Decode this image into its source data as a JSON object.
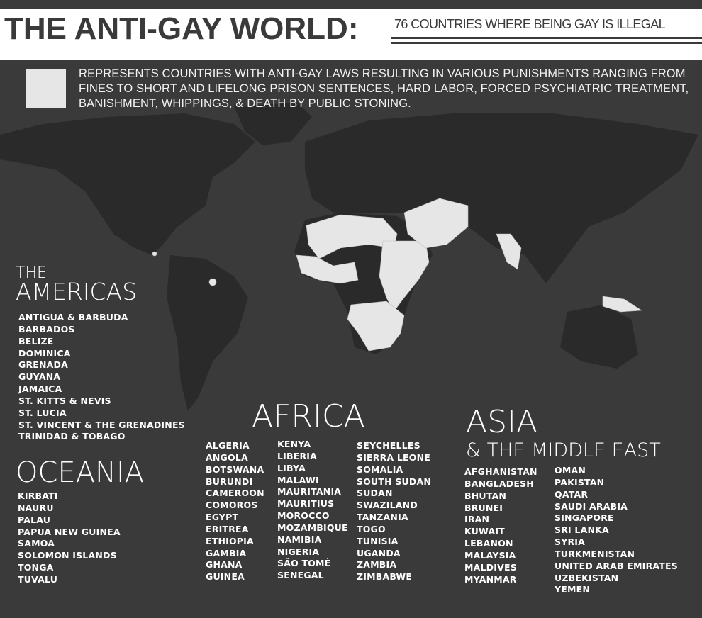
{
  "header": {
    "title": "THE ANTI-GAY WORLD:",
    "subtitle": "76 COUNTRIES WHERE BEING GAY IS ILLEGAL"
  },
  "legend": {
    "swatch_color": "#e6e6e6",
    "text": "REPRESENTS COUNTRIES WITH ANTI-GAY LAWS RESULTING IN VARIOUS PUNISHMENTS RANGING FROM FINES TO SHORT AND LIFELONG PRISON SENTENCES, HARD LABOR, FORCED PSYCHIATRIC TREATMENT, BANISHMENT, WHIPPINGS, & DEATH BY PUBLIC STONING."
  },
  "colors": {
    "background": "#3a3a3a",
    "land": "#2a2a2a",
    "highlighted": "#e6e6e6"
  },
  "regions": {
    "americas": {
      "heading_small": "THE",
      "heading": "AMERICAS",
      "countries": [
        "ANTIGUA & BARBUDA",
        "BARBADOS",
        "BELIZE",
        "DOMINICA",
        "GRENADA",
        "GUYANA",
        "JAMAICA",
        "ST. KITTS & NEVIS",
        "ST. LUCIA",
        "ST. VINCENT & THE GRENADINES",
        "TRINIDAD & TOBAGO"
      ]
    },
    "oceania": {
      "heading": "OCEANIA",
      "countries": [
        "KIRBATI",
        "NAURU",
        "PALAU",
        "PAPUA NEW GUINEA",
        "SAMOA",
        "SOLOMON ISLANDS",
        "TONGA",
        "TUVALU"
      ]
    },
    "africa": {
      "heading": "AFRICA",
      "columns": [
        [
          "ALGERIA",
          "ANGOLA",
          "BOTSWANA",
          "BURUNDI",
          "CAMEROON",
          "COMOROS",
          "EGYPT",
          "ERITREA",
          "ETHIOPIA",
          "GAMBIA",
          "GHANA",
          "GUINEA"
        ],
        [
          "KENYA",
          "LIBERIA",
          "LIBYA",
          "MALAWI",
          "MAURITANIA",
          "MAURITIUS",
          "MOROCCO",
          "MOZAMBIQUE",
          "NAMIBIA",
          "NIGERIA",
          "SÂO TOMÉ",
          "SENEGAL"
        ],
        [
          "SEYCHELLES",
          "SIERRA LEONE",
          "SOMALIA",
          "SOUTH SUDAN",
          "SUDAN",
          "SWAZILAND",
          "TANZANIA",
          "TOGO",
          "TUNISIA",
          "UGANDA",
          "ZAMBIA",
          "ZIMBABWE"
        ]
      ]
    },
    "asia": {
      "heading": "ASIA",
      "heading_sub": "& THE MIDDLE EAST",
      "columns": [
        [
          "AFGHANISTAN",
          "BANGLADESH",
          "BHUTAN",
          "BRUNEI",
          "IRAN",
          "KUWAIT",
          "LEBANON",
          "MALAYSIA",
          "MALDIVES",
          "MYANMAR"
        ],
        [
          "OMAN",
          "PAKISTAN",
          "QATAR",
          "SAUDI ARABIA",
          "SINGAPORE",
          "SRI LANKA",
          "SYRIA",
          "TURKMENISTAN",
          "UNITED ARAB EMIRATES",
          "UZBEKISTAN",
          "YEMEN"
        ]
      ]
    }
  }
}
